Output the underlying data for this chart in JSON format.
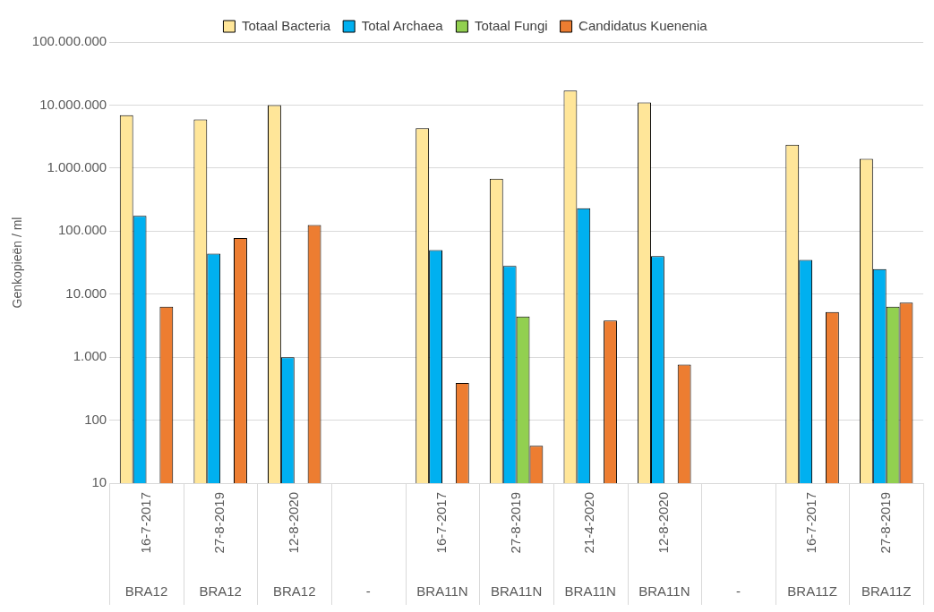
{
  "chart_data": {
    "type": "bar",
    "ylabel": "Genkopieën / ml",
    "log": "y",
    "grid": "y",
    "legend": "top",
    "categories": [
      "16-7-2017",
      "27-8-2019",
      "12-8-2020",
      null,
      "16-7-2017",
      "27-8-2019",
      "21-4-2020",
      "12-8-2020",
      null,
      "16-7-2017",
      "27-8-2019"
    ],
    "annotations": [
      "BRA12",
      "BRA12",
      "BRA12",
      "-",
      "BRA11N",
      "BRA11N",
      "BRA11N",
      "BRA11N",
      "-",
      "BRA11Z",
      "BRA11Z"
    ],
    "ylim": [
      10,
      100000000
    ],
    "yticks": [
      {
        "value": 10,
        "label": "10"
      },
      {
        "value": 100,
        "label": "100"
      },
      {
        "value": 1000,
        "label": "1.000"
      },
      {
        "value": 10000,
        "label": "10.000"
      },
      {
        "value": 100000,
        "label": "100.000"
      },
      {
        "value": 1000000,
        "label": "1.000.000"
      },
      {
        "value": 10000000,
        "label": "10.000.000"
      },
      {
        "value": 100000000,
        "label": "100.000.000"
      }
    ],
    "series": [
      {
        "name": "Totaal Bacteria",
        "color": "#ffe699",
        "values": [
          6900000,
          5900000,
          10000000,
          null,
          4300000,
          680000,
          17000000,
          11000000,
          null,
          2350000,
          1400000
        ]
      },
      {
        "name": "Total Archaea",
        "color": "#00b0f0",
        "values": [
          175000,
          44000,
          1000,
          null,
          50000,
          28000,
          230000,
          40000,
          null,
          35000,
          25000
        ]
      },
      {
        "name": "Totaal Fungi",
        "color": "#92d050",
        "values": [
          null,
          null,
          null,
          null,
          null,
          4400,
          null,
          null,
          null,
          null,
          6300
        ]
      },
      {
        "name": "Candidatus Kuenenia",
        "color": "#ed7d31",
        "values": [
          6300,
          78000,
          125000,
          null,
          390,
          39,
          3800,
          760,
          null,
          5200,
          7300
        ]
      }
    ]
  }
}
